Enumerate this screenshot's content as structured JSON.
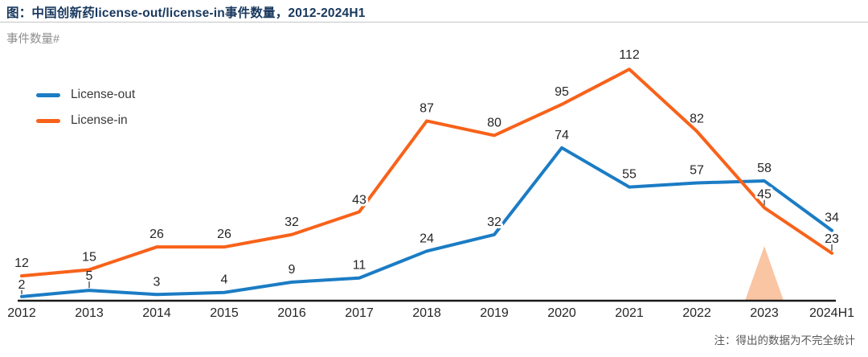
{
  "page": {
    "title": "图：中国创新药license-out/license-in事件数量，2012-2024H1",
    "title_color": "#17375D",
    "subtitle": "事件数量#",
    "note": "注：得出的数据为不完全统计"
  },
  "legend": {
    "items": [
      {
        "label": "License-out",
        "color": "#1B7CC4"
      },
      {
        "label": "License-in",
        "color": "#F8621A"
      }
    ]
  },
  "chart_data": {
    "type": "line",
    "title": "中国创新药license-out/license-in事件数量，2012-2024H1",
    "xlabel": "",
    "ylabel": "事件数量#",
    "categories": [
      "2012",
      "2013",
      "2014",
      "2015",
      "2016",
      "2017",
      "2018",
      "2019",
      "2020",
      "2021",
      "2022",
      "2023",
      "2024H1"
    ],
    "series": [
      {
        "name": "License-out",
        "color": "#1B7CC4",
        "values": [
          2,
          5,
          3,
          4,
          9,
          11,
          24,
          32,
          74,
          55,
          57,
          58,
          34
        ]
      },
      {
        "name": "License-in",
        "color": "#F8621A",
        "values": [
          12,
          15,
          26,
          26,
          32,
          43,
          87,
          80,
          95,
          112,
          82,
          45,
          23
        ]
      }
    ],
    "ylim": [
      0,
      120
    ],
    "grid": false,
    "data_labels": true,
    "legend_position": "upper-left",
    "axis_color": "#1a1a1a",
    "label_color": "#262626",
    "annotations": [
      {
        "type": "triangle-highlight",
        "category": "2023",
        "color": "#F9C5A3"
      }
    ]
  }
}
